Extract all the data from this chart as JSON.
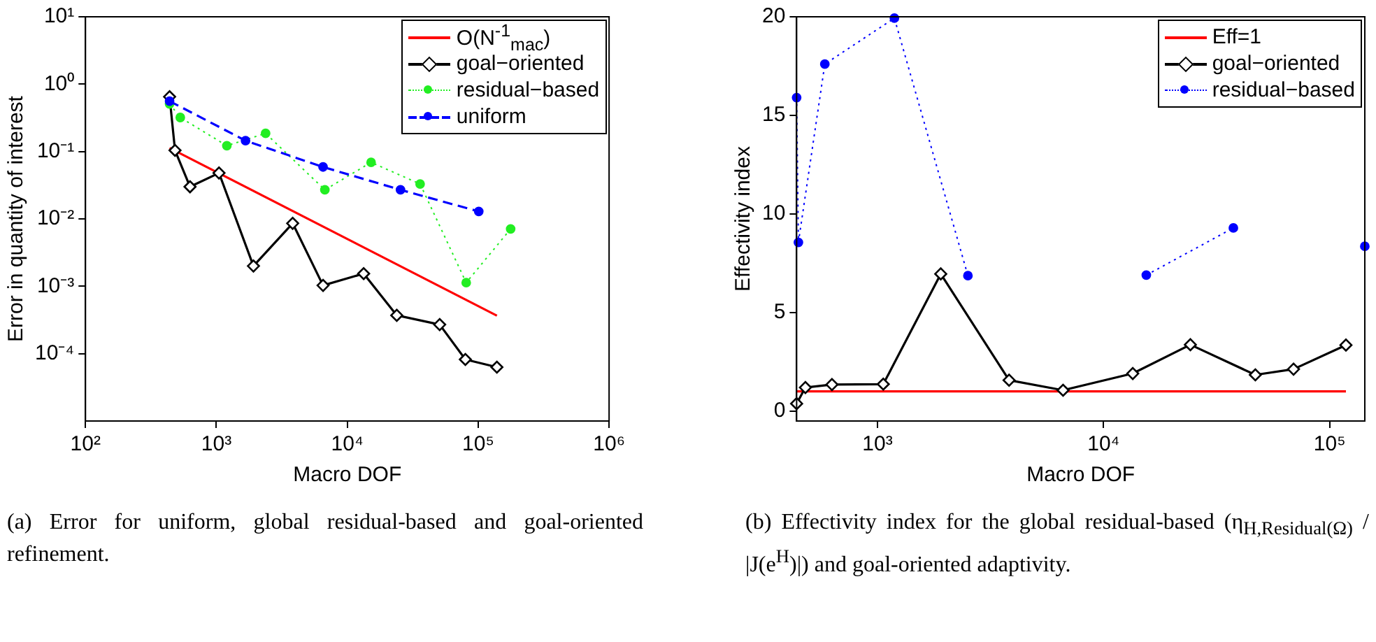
{
  "chart_data": [
    {
      "type": "line",
      "xlabel": "Macro DOF",
      "ylabel": "Error in quantity of interest",
      "log": "xy",
      "xlim": [
        100,
        1000000
      ],
      "xticks": [
        {
          "value": 100,
          "label": "10²"
        },
        {
          "value": 1000,
          "label": "10³"
        },
        {
          "value": 10000,
          "label": "10⁴"
        },
        {
          "value": 100000,
          "label": "10⁵"
        },
        {
          "value": 1000000,
          "label": "10⁶"
        }
      ],
      "ylim": [
        1e-05,
        10
      ],
      "yticks": [
        {
          "value": 0.0001,
          "label": "10⁻⁴"
        },
        {
          "value": 0.001,
          "label": "10⁻³"
        },
        {
          "value": 0.01,
          "label": "10⁻²"
        },
        {
          "value": 0.1,
          "label": "10⁻¹"
        },
        {
          "value": 1,
          "label": "10⁰"
        },
        {
          "value": 10,
          "label": "10¹"
        }
      ],
      "grid": false,
      "legend": "top right",
      "annotations": [
        "(a) Error for uniform, global residual-based and goal-oriented refinement."
      ],
      "series": [
        {
          "name": "O(N$^{-1}$$_{mac}$)",
          "color": "#ff0000",
          "marker": "none",
          "line_style": "solid",
          "x": [
            439,
            139000
          ],
          "values": [
            0.113,
            0.000366
          ]
        },
        {
          "name": "goal−oriented",
          "color": "#000000",
          "marker": "diamond",
          "line_style": "solid",
          "x": [
            439,
            483,
            629,
            1047,
            1919,
            3826,
            6530,
            13340,
            23880,
            50800,
            79800,
            139000
          ],
          "values": [
            0.65,
            0.104,
            0.03,
            0.048,
            0.002,
            0.0086,
            0.00103,
            0.00154,
            0.00037,
            0.00027,
            8.2e-05,
            6.3e-05
          ]
        },
        {
          "name": "residual−based",
          "color": "#22ee22",
          "marker": "circle",
          "line_style": "dotted",
          "x": [
            439,
            530,
            1202,
            2377,
            6740,
            15200,
            36000,
            81000,
            177000
          ],
          "values": [
            0.51,
            0.32,
            0.122,
            0.186,
            0.027,
            0.069,
            0.033,
            0.00113,
            0.0071
          ]
        },
        {
          "name": "uniform",
          "color": "#0000ff",
          "marker": "circle",
          "line_style": "dashed",
          "x": [
            439,
            1670,
            6530,
            25500,
            101000
          ],
          "values": [
            0.56,
            0.145,
            0.059,
            0.027,
            0.0129
          ]
        }
      ]
    },
    {
      "type": "line",
      "xlabel": "Macro DOF",
      "ylabel": "Effectivity index",
      "log": "x",
      "xlim": [
        439,
        143000
      ],
      "xticks": [
        {
          "value": 1000,
          "label": "10³"
        },
        {
          "value": 10000,
          "label": "10⁴"
        },
        {
          "value": 100000,
          "label": "10⁵"
        }
      ],
      "ylim": [
        -0.5,
        20
      ],
      "yticks": [
        0,
        5,
        10,
        15,
        20
      ],
      "grid": false,
      "legend": "top right",
      "annotations": [
        "(b) Effectivity index for the global residual-based (η$_{H,Residual(Ω)}$ / |J(e$^{H}$)|) and goal-oriented adaptivity."
      ],
      "series": [
        {
          "name": "Eff=1",
          "color": "#ff0000",
          "marker": "none",
          "line_style": "solid",
          "x": [
            439,
            118000
          ],
          "values": [
            1,
            1
          ]
        },
        {
          "name": "goal−oriented",
          "color": "#000000",
          "marker": "diamond",
          "line_style": "solid",
          "x": [
            439,
            480,
            629,
            1061,
            1905,
            3820,
            6620,
            13460,
            24200,
            46900,
            69200,
            118000
          ],
          "values": [
            0.38,
            1.2,
            1.35,
            1.37,
            6.96,
            1.57,
            1.06,
            1.91,
            3.37,
            1.84,
            2.13,
            3.35
          ]
        },
        {
          "name": "residual−based",
          "color": "#0000ff",
          "marker": "circle",
          "line_style": "dotted",
          "x": [
            439,
            447,
            585,
            1188,
            2512,
            5700,
            15450,
            37500,
            37600,
            143000
          ],
          "values": [
            15.9,
            8.56,
            17.6,
            19.93,
            6.87,
            null,
            6.9,
            9.29,
            null,
            8.36
          ]
        }
      ]
    }
  ]
}
